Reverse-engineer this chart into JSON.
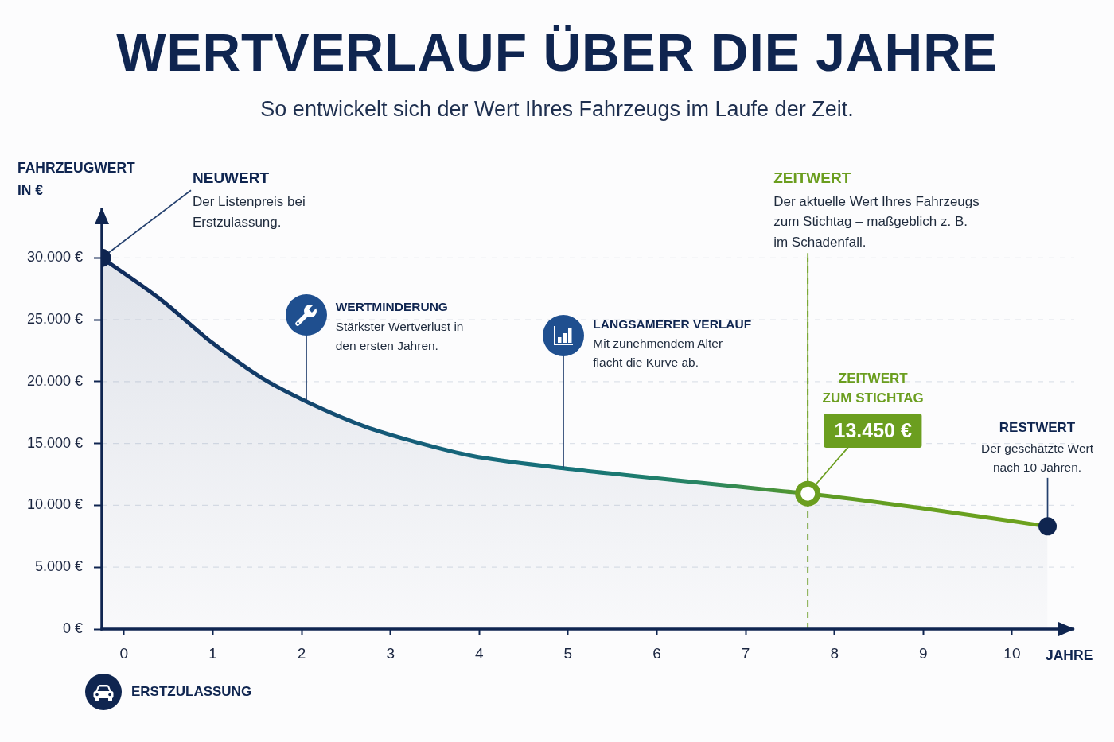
{
  "chart_data": {
    "type": "area",
    "title": "WERTVERLAUF ÜBER DIE JAHRE",
    "subtitle": "So entwickelt sich der Wert Ihres Fahrzeugs im Laufe der Zeit.",
    "xlabel": "JAHRE",
    "ylabel": "FAHRZEUGWERT\nIN €",
    "xlim": [
      -0.25,
      10.7
    ],
    "xticks": [
      0,
      1,
      2,
      3,
      4,
      5,
      6,
      7,
      8,
      9,
      10
    ],
    "ylim": [
      0,
      34000
    ],
    "yticks": [
      {
        "value": 0,
        "label": "0 €"
      },
      {
        "value": 5000,
        "label": "5.000 €"
      },
      {
        "value": 10000,
        "label": "10.000 €"
      },
      {
        "value": 15000,
        "label": "15.000 €"
      },
      {
        "value": 20000,
        "label": "20.000 €"
      },
      {
        "value": 25000,
        "label": "25.000 €"
      },
      {
        "value": 30000,
        "label": "30.000 €"
      }
    ],
    "grid": "y",
    "series": [
      {
        "x": [
          -0.25,
          0.4,
          1,
          1.55,
          2.05,
          2.72,
          3.32,
          3.92,
          4.95,
          5.7,
          6.6,
          7.4,
          7.7,
          9.05,
          10.4
        ],
        "values": [
          30000,
          26700,
          23100,
          20300,
          18400,
          16350,
          15050,
          14000,
          13000,
          12400,
          11750,
          11150,
          10950,
          9700,
          8300
        ],
        "colors": [
          "#0f2a5c",
          "#10305f",
          "#113563",
          "#123c68",
          "#13466e",
          "#145576",
          "#155f79",
          "#16677a",
          "#17727a",
          "#1c7b70",
          "#2a8660",
          "#4a9338",
          "#5d9a26",
          "#67a020",
          "#6ea21e"
        ]
      },
      {
        "type": "scatter",
        "x": [
          -0.25,
          10.4
        ],
        "values": [
          30000,
          8300
        ],
        "color": "#0f2550",
        "marker": "circle"
      },
      {
        "type": "scatter",
        "x": [
          7.7
        ],
        "values": [
          10950
        ],
        "color": "#6b9e1f",
        "marker": "circle"
      }
    ],
    "ref_lines": [
      {
        "axis": "x",
        "value": 7.7,
        "color": "#6b9e1f",
        "line_style": "dashed"
      }
    ],
    "annotations": [
      {
        "text": "NEUWERT\nDer Listenpreis bei\nErstzulassung.",
        "x": -0.25,
        "y": 30000
      },
      "WERTMINDERUNG\nStärkster Wertverlust in\nden ersten Jahren.",
      "LANGSAMERER VERLAUF\nMit zunehmendem Alter\nflacht die Kurve ab.",
      {
        "text": "ZEITWERT\nDer aktuelle Wert Ihres Fahrzeugs\nzum Stichtag – maßgeblich z. B.\nim Schadenfall.",
        "x": 7.7,
        "y": 10950
      },
      {
        "text": "ZEITWERT\nZUM STICHTAG\n13.450 €",
        "x": 7.7,
        "y": 10950
      },
      {
        "text": "RESTWERT\nDer geschätzte Wert\nnach 10 Jahren.",
        "x": 10.4,
        "y": 8300
      },
      "ERSTZULASSUNG"
    ]
  }
}
